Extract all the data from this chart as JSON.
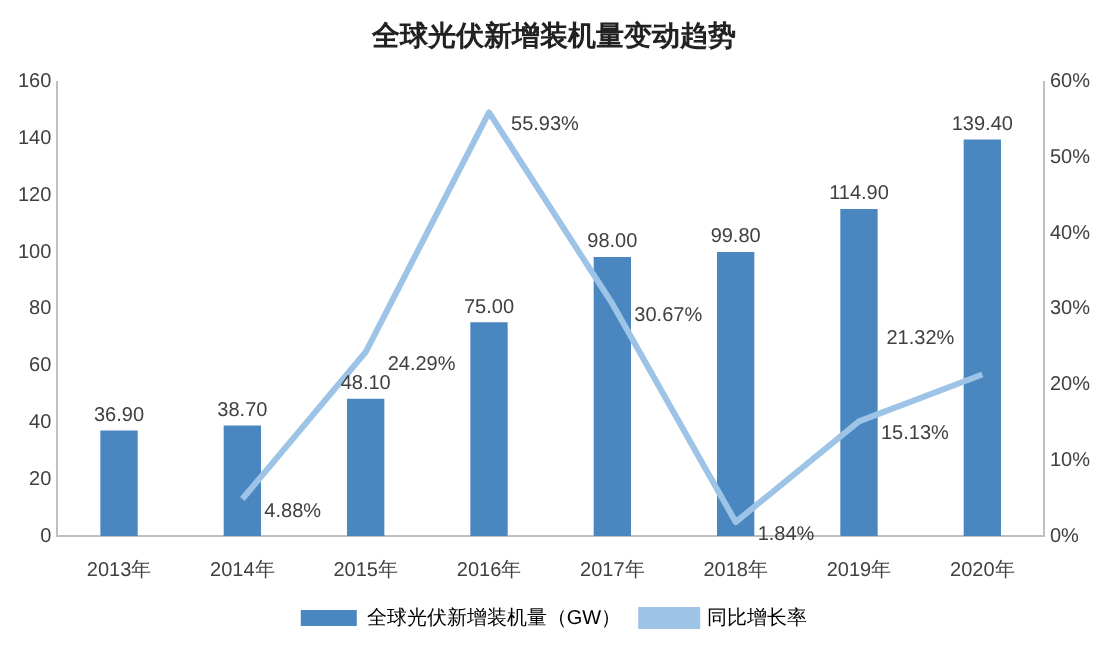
{
  "chart_data": {
    "type": "bar",
    "title": "全球光伏新增装机量变动趋势",
    "categories": [
      "2013年",
      "2014年",
      "2015年",
      "2016年",
      "2017年",
      "2018年",
      "2019年",
      "2020年"
    ],
    "series": [
      {
        "name": "全球光伏新增装机量（GW）",
        "color": "#4a86c0",
        "values": [
          36.9,
          38.7,
          48.1,
          75.0,
          98.0,
          99.8,
          114.9,
          139.4
        ],
        "value_labels": [
          "36.90",
          "38.70",
          "48.10",
          "75.00",
          "98.00",
          "99.80",
          "114.90",
          "139.40"
        ]
      },
      {
        "name": "同比增长率",
        "type": "line",
        "axis": "y2",
        "color": "#9dc3e6",
        "marker": "none",
        "values": [
          null,
          4.88,
          24.29,
          55.93,
          30.67,
          1.84,
          15.13,
          21.32
        ],
        "value_labels": [
          null,
          "4.88%",
          "24.29%",
          "55.93%",
          "30.67%",
          "1.84%",
          "15.13%",
          "21.32%"
        ]
      }
    ],
    "ylim": [
      0,
      160
    ],
    "yticks": [
      0,
      20,
      40,
      60,
      80,
      100,
      120,
      140,
      160
    ],
    "y2lim": [
      0,
      60
    ],
    "y2ticks": [
      {
        "value": 0,
        "label": "0%"
      },
      {
        "value": 10,
        "label": "10%"
      },
      {
        "value": 20,
        "label": "20%"
      },
      {
        "value": 30,
        "label": "30%"
      },
      {
        "value": 40,
        "label": "40%"
      },
      {
        "value": 50,
        "label": "50%"
      },
      {
        "value": 60,
        "label": "60%"
      }
    ],
    "legend": "bottom"
  }
}
